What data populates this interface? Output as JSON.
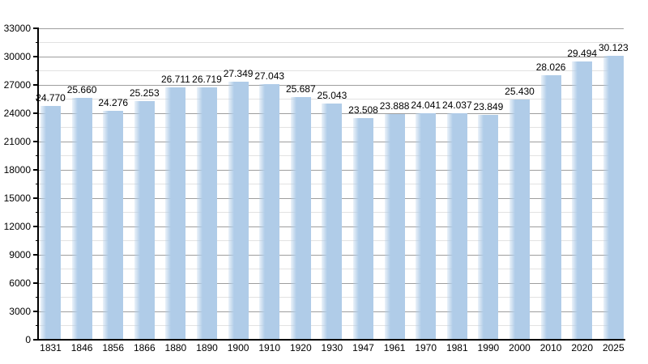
{
  "chart_data": {
    "type": "bar",
    "title": "",
    "xlabel": "",
    "ylabel": "",
    "categories": [
      "1831",
      "1846",
      "1856",
      "1866",
      "1880",
      "1890",
      "1900",
      "1910",
      "1920",
      "1930",
      "1947",
      "1961",
      "1970",
      "1981",
      "1990",
      "2000",
      "2010",
      "2020",
      "2025"
    ],
    "values": [
      24770,
      25660,
      24276,
      25253,
      26711,
      26719,
      27349,
      27043,
      25687,
      25043,
      23508,
      23888,
      24041,
      24037,
      23849,
      25430,
      28026,
      29494,
      30123
    ],
    "value_labels": [
      "24.770",
      "25.660",
      "24.276",
      "25.253",
      "26.711",
      "26.719",
      "27.349",
      "27.043",
      "25.687",
      "25.043",
      "23.508",
      "23.888",
      "24.041",
      "24.037",
      "23.849",
      "25.430",
      "28.026",
      "29.494",
      "30.123"
    ],
    "ylim": [
      0,
      33000
    ],
    "y_major_step": 3000,
    "y_minor_step": 1500,
    "y_tick_labels": [
      "0",
      "3000",
      "6000",
      "9000",
      "12000",
      "15000",
      "18000",
      "21000",
      "24000",
      "27000",
      "30000",
      "33000"
    ],
    "grid": true,
    "legend": false,
    "bar_color": "#b0cce8",
    "major_grid_color": "#9e9e9e",
    "minor_grid_color": "#e2e2e2",
    "axis_color": "#000000",
    "text_color": "#000000",
    "background_color": "#ffffff"
  }
}
